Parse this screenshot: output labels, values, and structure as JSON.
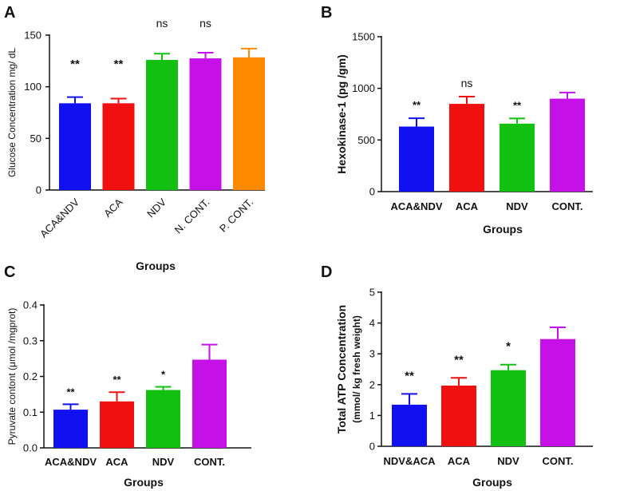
{
  "chart_data": [
    {
      "panel": "A",
      "type": "bar",
      "categories": [
        "ACA&NDV",
        "ACA",
        "NDV",
        "N. CONT.",
        "P. CONT."
      ],
      "values": [
        84,
        84,
        126,
        127.5,
        128.5
      ],
      "errors": [
        6,
        4.5,
        6,
        5.5,
        8.5
      ],
      "annotations": [
        "**",
        "**",
        "ns",
        "ns",
        ""
      ],
      "colors": [
        "#1010f0",
        "#f01010",
        "#12c012",
        "#c510e8",
        "#ff8a00"
      ],
      "ylabel": "Glucose Concentration mg/ dL",
      "xlabel": "Groups",
      "ylim": [
        0,
        150
      ],
      "yticks": [
        0,
        50,
        100,
        150
      ],
      "rotated_labels": true
    },
    {
      "panel": "B",
      "type": "bar",
      "categories": [
        "ACA&NDV",
        "ACA",
        "NDV",
        "CONT."
      ],
      "values": [
        630,
        850,
        658,
        900
      ],
      "errors": [
        80,
        70,
        50,
        60
      ],
      "annotations": [
        "**",
        "ns",
        "**",
        ""
      ],
      "colors": [
        "#1010f0",
        "#f01010",
        "#12c012",
        "#c510e8"
      ],
      "ylabel": "Hexokinase-1 (pg /gm)",
      "xlabel": "Groups",
      "ylim": [
        0,
        1500
      ],
      "yticks": [
        0,
        500,
        1000,
        1500
      ],
      "rotated_labels": false
    },
    {
      "panel": "C",
      "type": "bar",
      "categories": [
        "ACA&NDV",
        "ACA",
        "NDV",
        "CONT."
      ],
      "values": [
        0.107,
        0.13,
        0.162,
        0.247
      ],
      "errors": [
        0.015,
        0.026,
        0.009,
        0.042
      ],
      "annotations": [
        "**",
        "**",
        "*",
        ""
      ],
      "colors": [
        "#1010f0",
        "#f01010",
        "#12c012",
        "#c510e8"
      ],
      "ylabel": "Pyruvate contont (μmol /mgprot)",
      "xlabel": "Groups",
      "ylim": [
        0,
        0.4
      ],
      "yticks": [
        "0.0",
        "0.1",
        "0.2",
        "0.3",
        "0.4"
      ],
      "rotated_labels": false
    },
    {
      "panel": "D",
      "type": "bar",
      "categories": [
        "NDV&ACA",
        "ACA",
        "NDV",
        "CONT."
      ],
      "values": [
        1.35,
        1.97,
        2.47,
        3.48
      ],
      "errors": [
        0.35,
        0.25,
        0.18,
        0.38
      ],
      "annotations": [
        "**",
        "**",
        "*",
        ""
      ],
      "colors": [
        "#1010f0",
        "#f01010",
        "#12c012",
        "#c510e8"
      ],
      "ylabel": "Total ATP Concentration",
      "ylabel2": "(mmol/ kg fresh weight)",
      "xlabel": "Groups",
      "ylim": [
        0,
        5
      ],
      "yticks": [
        0,
        1,
        2,
        3,
        4,
        5
      ],
      "rotated_labels": false
    }
  ]
}
